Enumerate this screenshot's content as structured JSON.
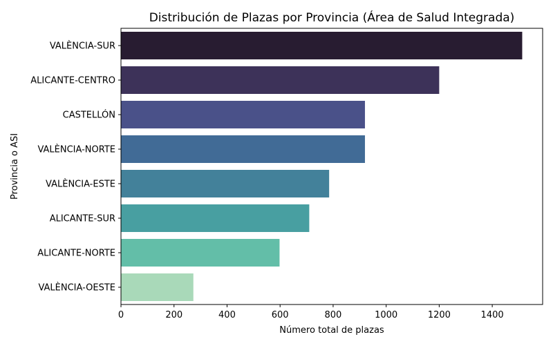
{
  "chart_data": {
    "type": "bar",
    "orientation": "horizontal",
    "title": "Distribución de Plazas por Provincia (Área de Salud Integrada)",
    "xlabel": "Número total de plazas",
    "ylabel": "Provincia o ASI",
    "categories": [
      "VALÈNCIA-SUR",
      "ALICANTE-CENTRO",
      "CASTELLÓN",
      "VALÈNCIA-NORTE",
      "VALÈNCIA-ESTE",
      "ALICANTE-SUR",
      "ALICANTE-NORTE",
      "VALÈNCIA-OESTE"
    ],
    "values": [
      1513,
      1200,
      920,
      920,
      785,
      710,
      598,
      273
    ],
    "colors": [
      "#281c31",
      "#3d3259",
      "#4a5189",
      "#416b96",
      "#43819a",
      "#489fa1",
      "#63bea8",
      "#a9d9b9"
    ],
    "xlim": [
      0,
      1590
    ],
    "xticks": [
      0,
      200,
      400,
      600,
      800,
      1000,
      1200,
      1400
    ],
    "grid": false,
    "legend": "none"
  }
}
